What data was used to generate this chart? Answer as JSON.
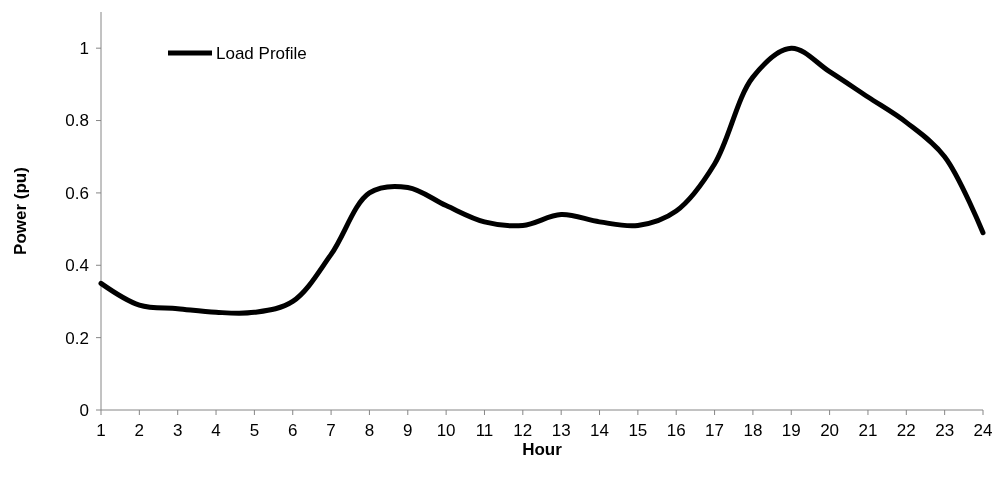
{
  "chart_data": {
    "type": "line",
    "xlabel": "Hour",
    "ylabel": "Power (pu)",
    "x": [
      1,
      2,
      3,
      4,
      5,
      6,
      7,
      8,
      9,
      10,
      11,
      12,
      13,
      14,
      15,
      16,
      17,
      18,
      19,
      20,
      21,
      22,
      23,
      24
    ],
    "series": [
      {
        "name": "Load Profile",
        "color": "#000000",
        "values": [
          0.35,
          0.29,
          0.28,
          0.27,
          0.27,
          0.3,
          0.43,
          0.6,
          0.615,
          0.565,
          0.52,
          0.51,
          0.54,
          0.52,
          0.51,
          0.55,
          0.68,
          0.92,
          1.0,
          0.935,
          0.865,
          0.795,
          0.7,
          0.49
        ]
      }
    ],
    "xlim": [
      1,
      24
    ],
    "xticks": [
      1,
      2,
      3,
      4,
      5,
      6,
      7,
      8,
      9,
      10,
      11,
      12,
      13,
      14,
      15,
      16,
      17,
      18,
      19,
      20,
      21,
      22,
      23,
      24
    ],
    "ylim": [
      0,
      1.1
    ],
    "yticks": [
      0,
      0.2,
      0.4,
      0.6,
      0.8,
      1
    ],
    "legend": "top left",
    "grid": false,
    "marker": "none",
    "line_style": "solid"
  }
}
